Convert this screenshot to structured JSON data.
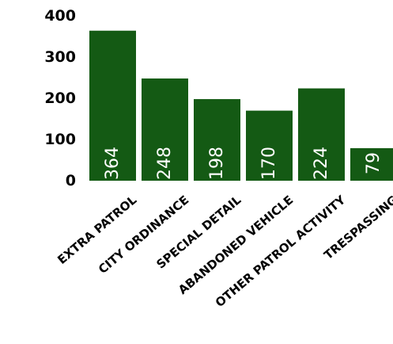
{
  "chart_data": {
    "type": "bar",
    "title": "",
    "xlabel": "",
    "ylabel": "",
    "categories": [
      "EXTRA PATROL",
      "CITY ORDINANCE",
      "SPECIAL DETAIL",
      "ABANDONED VEHICLE",
      "OTHER PATROL ACTIVITY",
      "TRESPASSING"
    ],
    "values": [
      364,
      248,
      198,
      170,
      224,
      79
    ],
    "data_labels": [
      "364",
      "248",
      "198",
      "170",
      "224",
      "79"
    ],
    "yticks": [
      0,
      100,
      200,
      300,
      400
    ],
    "ytick_labels": [
      "0",
      "100",
      "200",
      "300",
      "400"
    ],
    "ylim": [
      0,
      400
    ],
    "grid": false,
    "legend": "none",
    "colors": {
      "bar": "#145a14",
      "bar_label": "#ffffff",
      "text": "#000000",
      "background": "#ffffff"
    }
  }
}
